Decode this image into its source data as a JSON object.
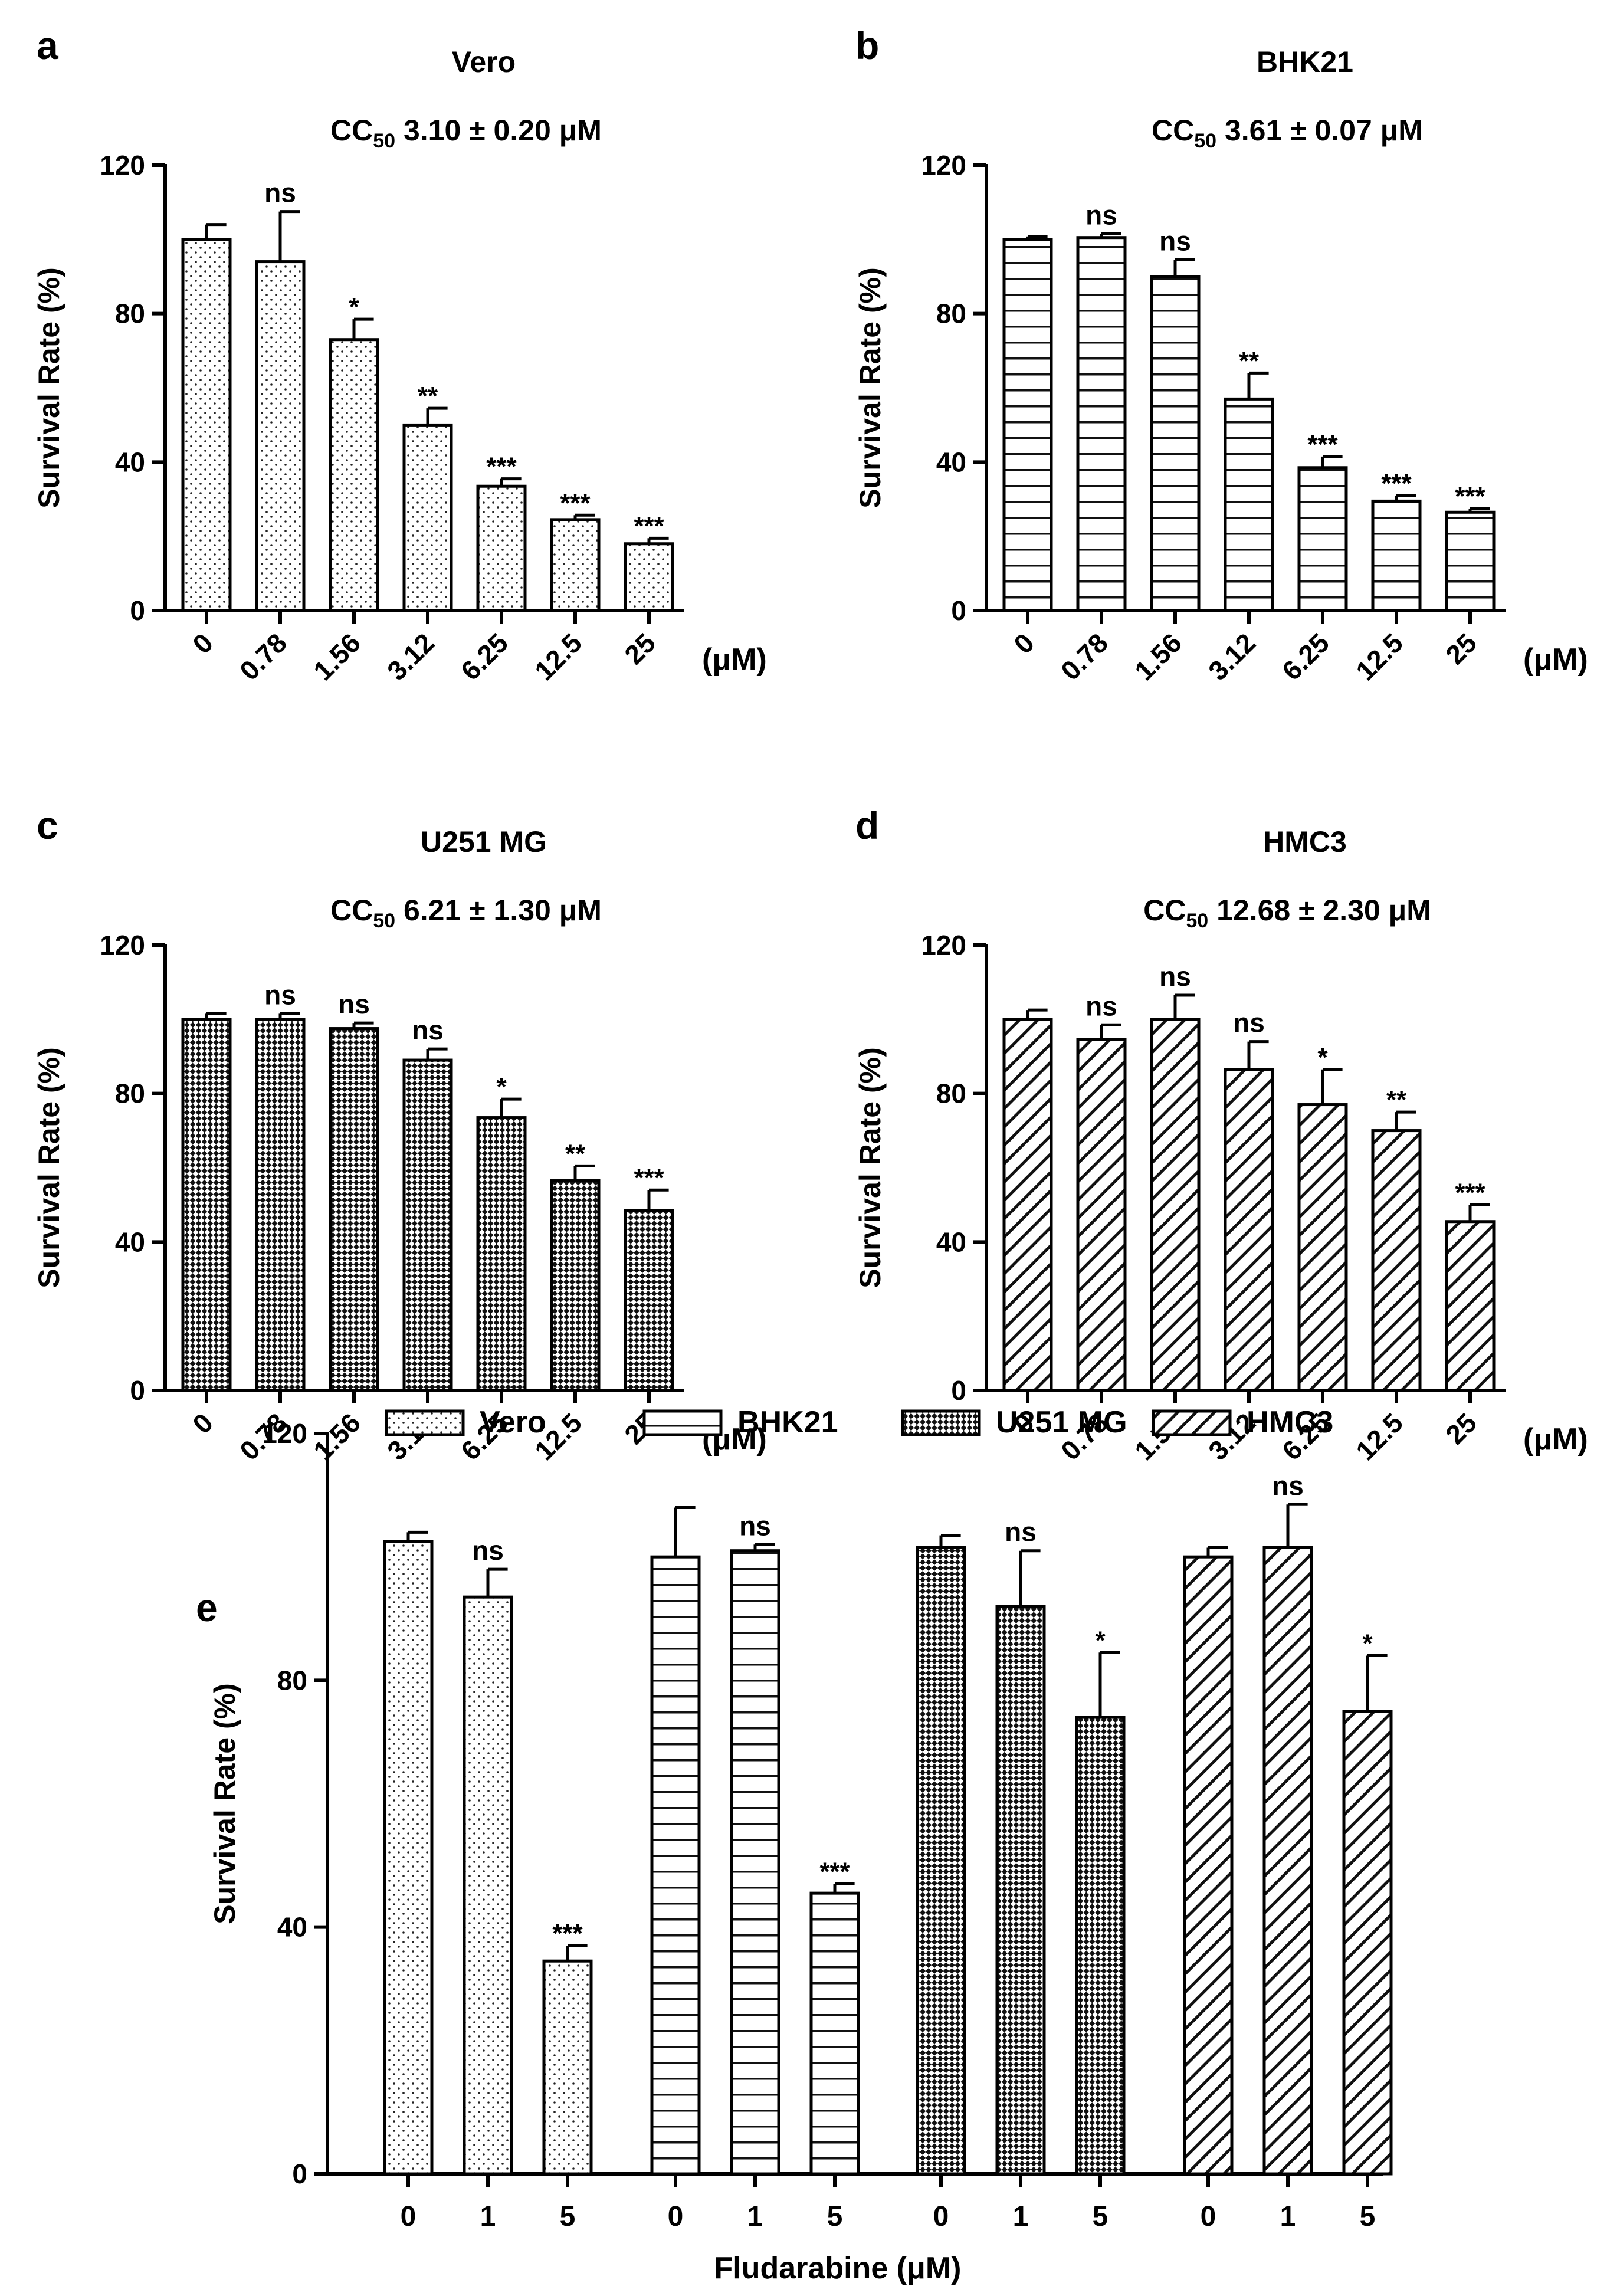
{
  "figure": {
    "panel_letters": [
      "a",
      "b",
      "c",
      "d",
      "e"
    ]
  },
  "chart_data": [
    {
      "panel": "a",
      "type": "bar",
      "title": "Vero",
      "subtitle": {
        "pre": "CC",
        "sub": "50",
        "post": " 3.10 ± 0.20 μM"
      },
      "ylabel": "Survival Rate (%)",
      "xunit": "(μM)",
      "ylim": [
        0,
        120
      ],
      "yticks": [
        "0",
        "40",
        "80",
        "120"
      ],
      "categories": [
        "0",
        "0.78",
        "1.56",
        "3.12",
        "6.25",
        "12.5",
        "25"
      ],
      "values": [
        100,
        94,
        73,
        50,
        33.5,
        24.5,
        18
      ],
      "errors": [
        4,
        13.5,
        5.5,
        4.5,
        2,
        1.2,
        1.5
      ],
      "significance": [
        "",
        "ns",
        "*",
        "**",
        "***",
        "***",
        "***"
      ],
      "pattern": "dots"
    },
    {
      "panel": "b",
      "type": "bar",
      "title": "BHK21",
      "subtitle": {
        "pre": "CC",
        "sub": "50",
        "post": " 3.61 ± 0.07 μM"
      },
      "ylabel": "Survival Rate (%)",
      "xunit": "(μM)",
      "ylim": [
        0,
        120
      ],
      "yticks": [
        "0",
        "40",
        "80",
        "120"
      ],
      "categories": [
        "0",
        "0.78",
        "1.56",
        "3.12",
        "6.25",
        "12.5",
        "25"
      ],
      "values": [
        100,
        100.5,
        90,
        57,
        38.5,
        29.5,
        26.5
      ],
      "errors": [
        0.8,
        1,
        4.5,
        7,
        3,
        1.5,
        1
      ],
      "significance": [
        "",
        "ns",
        "ns",
        "**",
        "***",
        "***",
        "***"
      ],
      "pattern": "hlines"
    },
    {
      "panel": "c",
      "type": "bar",
      "title": "U251 MG",
      "subtitle": {
        "pre": "CC",
        "sub": "50",
        "post": " 6.21 ± 1.30 μM"
      },
      "ylabel": "Survival Rate (%)",
      "xunit": "(μM)",
      "ylim": [
        0,
        120
      ],
      "yticks": [
        "0",
        "40",
        "80",
        "120"
      ],
      "categories": [
        "0",
        "0.78",
        "1.56",
        "3.12",
        "6.25",
        "12.5",
        "25"
      ],
      "values": [
        100,
        100,
        97.5,
        89,
        73.5,
        56.5,
        48.5
      ],
      "errors": [
        1.5,
        1.5,
        1.5,
        3,
        5,
        4,
        5.5
      ],
      "significance": [
        "",
        "ns",
        "ns",
        "ns",
        "*",
        "**",
        "***"
      ],
      "pattern": "checker"
    },
    {
      "panel": "d",
      "type": "bar",
      "title": "HMC3",
      "subtitle": {
        "pre": "CC",
        "sub": "50",
        "post": " 12.68 ± 2.30 μM"
      },
      "ylabel": "Survival Rate (%)",
      "xunit": "(μM)",
      "ylim": [
        0,
        120
      ],
      "yticks": [
        "0",
        "40",
        "80",
        "120"
      ],
      "categories": [
        "0",
        "0.78",
        "1.56",
        "3.12",
        "6.25",
        "12.5",
        "25"
      ],
      "values": [
        100,
        94.5,
        100,
        86.5,
        77,
        70,
        45.5
      ],
      "errors": [
        2.5,
        4,
        6.5,
        7.5,
        9.5,
        5,
        4.5
      ],
      "significance": [
        "",
        "ns",
        "ns",
        "ns",
        "*",
        "**",
        "***"
      ],
      "pattern": "diag"
    },
    {
      "panel": "e",
      "type": "bar",
      "xlabel": "Fludarabine (μM)",
      "ylabel": "Survival Rate (%)",
      "ylim": [
        0,
        120
      ],
      "yticks": [
        "0",
        "40",
        "80",
        "120"
      ],
      "legend_position": "top",
      "groups": [
        {
          "name": "Vero",
          "pattern": "dots",
          "categories": [
            "0",
            "1",
            "5"
          ],
          "values": [
            102.5,
            93.5,
            34.5
          ],
          "errors": [
            1.5,
            4.5,
            2.5
          ],
          "significance": [
            "",
            "ns",
            "***"
          ]
        },
        {
          "name": "BHK21",
          "pattern": "hlines",
          "categories": [
            "0",
            "1",
            "5"
          ],
          "values": [
            100,
            101,
            45.5
          ],
          "errors": [
            8,
            1,
            1.5
          ],
          "significance": [
            "",
            "ns",
            "***"
          ]
        },
        {
          "name": "U251 MG",
          "pattern": "checker",
          "categories": [
            "0",
            "1",
            "5"
          ],
          "values": [
            101.5,
            92,
            74
          ],
          "errors": [
            2,
            9,
            10.5
          ],
          "significance": [
            "",
            "ns",
            "*"
          ]
        },
        {
          "name": "HMC3",
          "pattern": "diag",
          "categories": [
            "0",
            "1",
            "5"
          ],
          "values": [
            100,
            101.5,
            75
          ],
          "errors": [
            1.5,
            7,
            9
          ],
          "significance": [
            "",
            "ns",
            "*"
          ]
        }
      ]
    }
  ]
}
